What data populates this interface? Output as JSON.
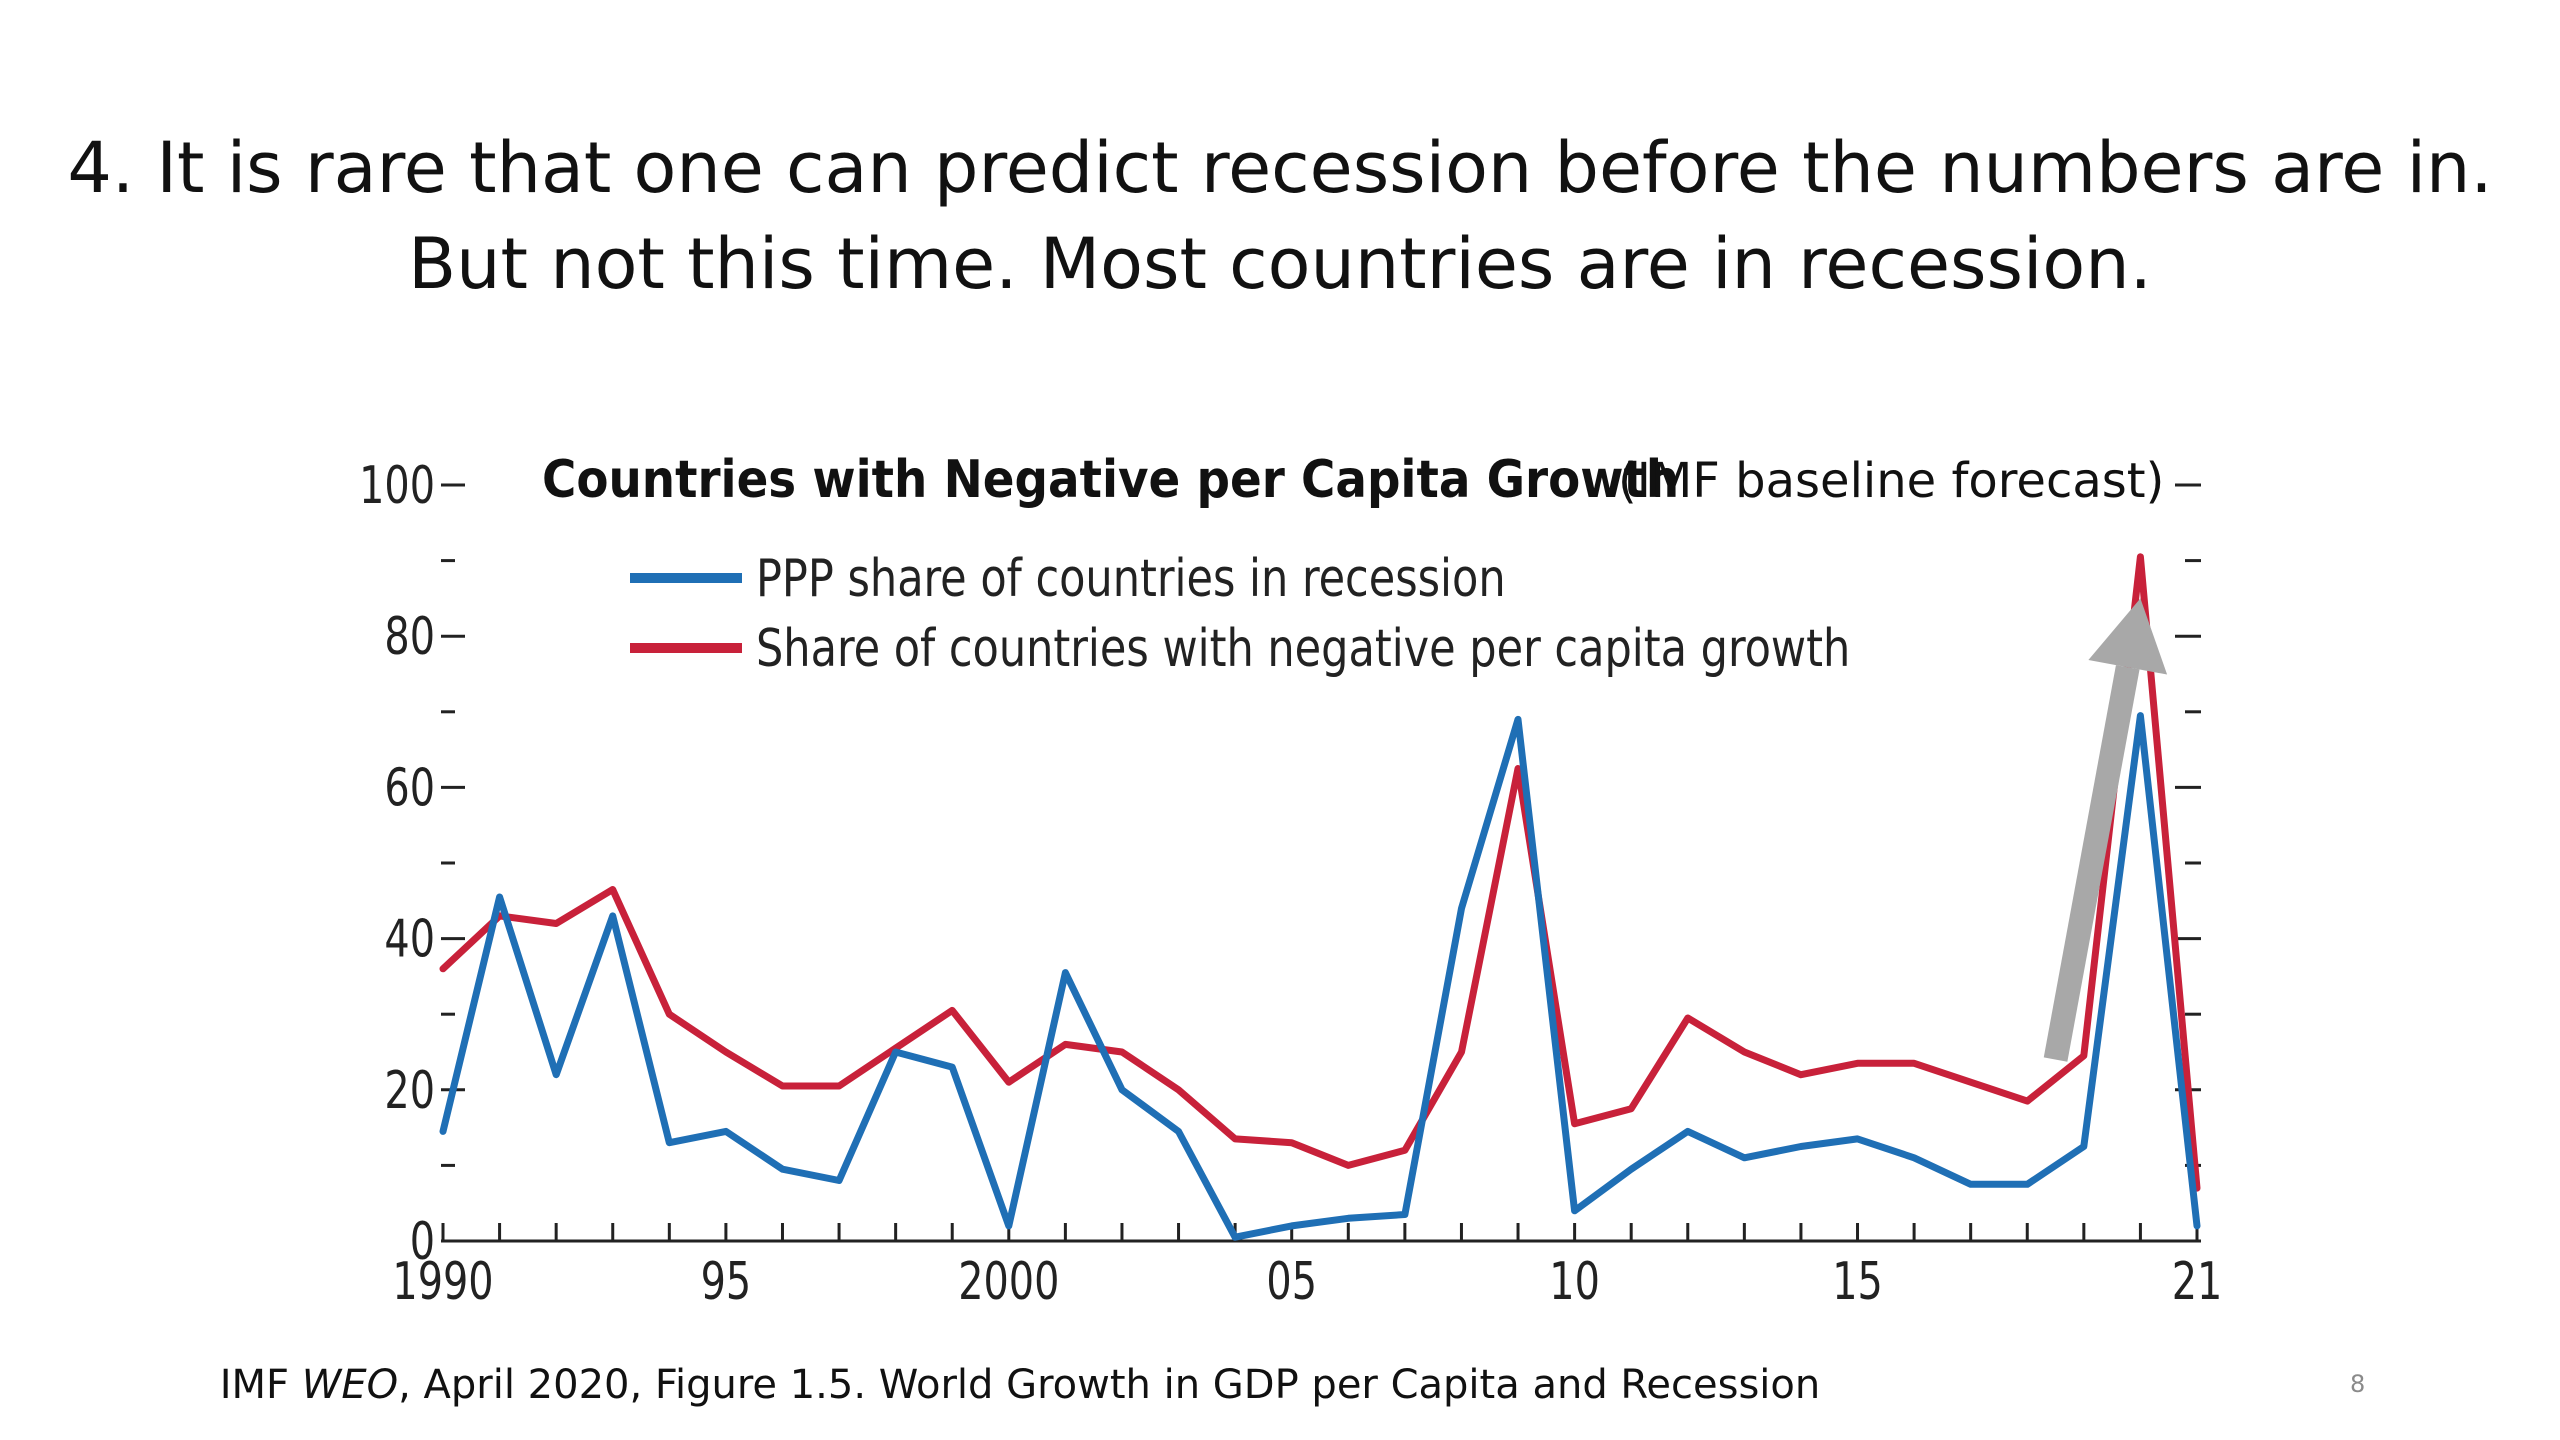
{
  "slide": {
    "title_line1": "4. It is rare that one can predict recession before the numbers are in.",
    "title_line2": "But not this time.  Most countries are in recession.",
    "caption_pre": "IMF ",
    "caption_em": "WEO",
    "caption_post": ", April 2020, Figure 1.5. World Growth in GDP per Capita and Recession",
    "page_number": "8"
  },
  "chart_data": {
    "type": "line",
    "title": "Countries with Negative per Capita Growth",
    "subtitle": "(IMF baseline forecast)",
    "xlabel": "",
    "ylabel": "",
    "x": [
      1990,
      1991,
      1992,
      1993,
      1994,
      1995,
      1996,
      1997,
      1998,
      1999,
      2000,
      2001,
      2002,
      2003,
      2004,
      2005,
      2006,
      2007,
      2008,
      2009,
      2010,
      2011,
      2012,
      2013,
      2014,
      2015,
      2016,
      2017,
      2018,
      2019,
      2020,
      2021
    ],
    "xlim": [
      1990,
      2021
    ],
    "ylim": [
      0,
      100
    ],
    "x_ticks": [
      1990,
      1991,
      1992,
      1993,
      1994,
      1995,
      1996,
      1997,
      1998,
      1999,
      2000,
      2001,
      2002,
      2003,
      2004,
      2005,
      2006,
      2007,
      2008,
      2009,
      2010,
      2011,
      2012,
      2013,
      2014,
      2015,
      2016,
      2017,
      2018,
      2019,
      2020,
      2021
    ],
    "x_tick_labels": [
      {
        "x": 1990,
        "label": "1990"
      },
      {
        "x": 1995,
        "label": "95"
      },
      {
        "x": 2000,
        "label": "2000"
      },
      {
        "x": 2005,
        "label": "05"
      },
      {
        "x": 2010,
        "label": "10"
      },
      {
        "x": 2015,
        "label": "15"
      },
      {
        "x": 2021,
        "label": "21"
      }
    ],
    "y_tick_labels": [
      {
        "y": 0,
        "label": "0"
      },
      {
        "y": 20,
        "label": "20"
      },
      {
        "y": 40,
        "label": "40"
      },
      {
        "y": 60,
        "label": "60"
      },
      {
        "y": 80,
        "label": "80"
      },
      {
        "y": 100,
        "label": "100"
      }
    ],
    "y_minor_ticks": [
      10,
      30,
      50,
      70,
      90
    ],
    "grid": false,
    "legend_position": "top-left",
    "series": [
      {
        "name": "PPP share of countries in recession",
        "color": "#1f6fb5",
        "values": [
          14.5,
          45.5,
          22,
          43,
          13,
          14.5,
          9.5,
          8,
          25,
          23,
          2,
          35.5,
          20,
          14.5,
          0.5,
          2,
          3,
          3.5,
          44,
          69,
          4,
          9.5,
          14.5,
          11,
          12.5,
          13.5,
          11,
          7.5,
          7.5,
          12.5,
          69.5,
          2
        ]
      },
      {
        "name": "Share of countries with negative per capita growth",
        "color": "#c8213a",
        "values": [
          36,
          43,
          42,
          46.5,
          30,
          25,
          20.5,
          20.5,
          25.5,
          30.5,
          21,
          26,
          25,
          20,
          13.5,
          13,
          10,
          12,
          25,
          62.5,
          15.5,
          17.5,
          29.5,
          25,
          22,
          23.5,
          23.5,
          21,
          18.5,
          24.5,
          90.5,
          7
        ]
      }
    ],
    "annotations": [
      {
        "type": "arrow",
        "color": "#a8a8a8",
        "from": [
          2018.5,
          24
        ],
        "to": [
          2020,
          85
        ]
      }
    ]
  }
}
